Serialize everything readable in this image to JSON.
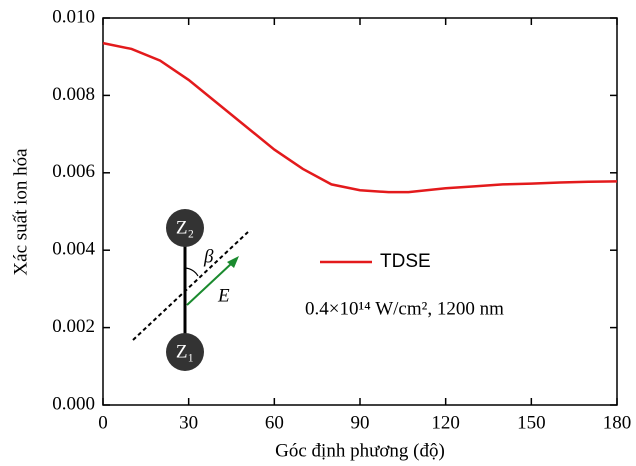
{
  "chart_data": {
    "type": "line",
    "x_label": "Góc định phương (độ)",
    "y_label": "Xác suất ion hóa",
    "x": [
      0,
      10,
      20,
      30,
      40,
      50,
      60,
      70,
      80,
      90,
      100,
      107,
      120,
      130,
      140,
      150,
      160,
      170,
      180
    ],
    "series": [
      {
        "name": "TDSE",
        "color": "#e31a1c",
        "values": [
          0.00935,
          0.0092,
          0.0089,
          0.0084,
          0.0078,
          0.0072,
          0.0066,
          0.0061,
          0.0057,
          0.00555,
          0.0055,
          0.0055,
          0.0056,
          0.00565,
          0.0057,
          0.00572,
          0.00575,
          0.00577,
          0.00578
        ]
      }
    ],
    "xlim": [
      0,
      180
    ],
    "xticks": [
      0,
      30,
      60,
      90,
      120,
      150,
      180
    ],
    "ylim": [
      0,
      0.01
    ],
    "yticks": [
      {
        "value": 0,
        "label": "0.000"
      },
      {
        "value": 0.002,
        "label": "0.002"
      },
      {
        "value": 0.004,
        "label": "0.004"
      },
      {
        "value": 0.006,
        "label": "0.006"
      },
      {
        "value": 0.008,
        "label": "0.008"
      },
      {
        "value": 0.01,
        "label": "0.010"
      }
    ],
    "annotation": "0.4×10¹⁴ W/cm², 1200 nm",
    "diagram": {
      "atom_top": "Z₂",
      "atom_bottom": "Z₁",
      "angle": "β",
      "field": "E"
    }
  }
}
